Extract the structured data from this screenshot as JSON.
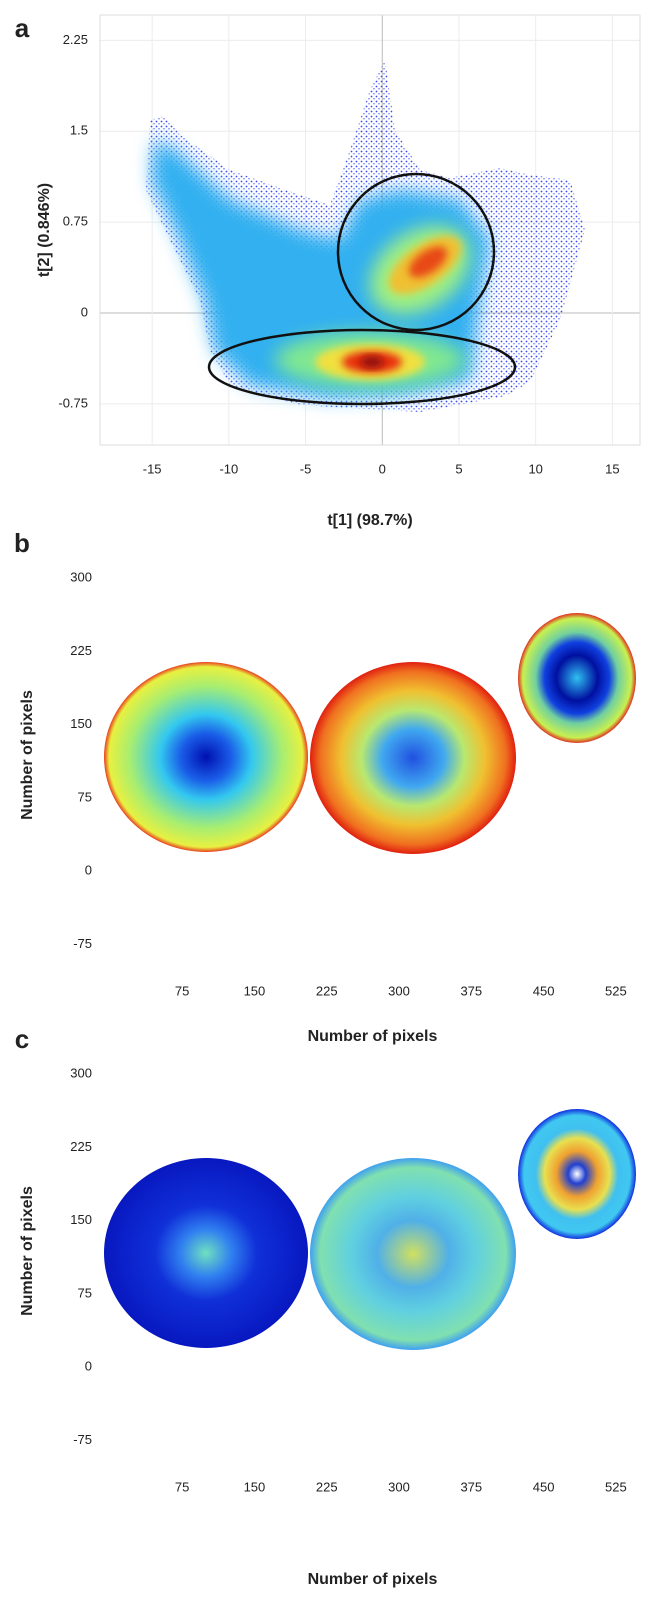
{
  "chart_data": [
    {
      "type": "scatter",
      "panel": "a",
      "xlabel": "t[1] (98.7%)",
      "ylabel": "t[2] (0.846%)",
      "xlim": [
        -18.4,
        16.8
      ],
      "ylim": [
        -1.09,
        2.46
      ],
      "xticks": [
        -15,
        -10,
        -5,
        0,
        5,
        10,
        15
      ],
      "yticks": [
        2.25,
        1.5,
        0.75,
        0,
        -0.75
      ],
      "grid": true
    },
    {
      "type": "image",
      "panel": "b",
      "xlabel": "Number of pixels",
      "ylabel": "Number of pixels",
      "xlim": [
        -5,
        550
      ],
      "ylim": [
        -91,
        329
      ],
      "xticks": [
        75,
        150,
        225,
        300,
        375,
        450,
        525
      ],
      "yticks": [
        -75,
        0,
        75,
        150,
        225,
        300
      ],
      "grid": false
    },
    {
      "type": "image",
      "panel": "c",
      "xlabel": "Number of pixels",
      "ylabel": "Number of pixels",
      "xlim": [
        -5,
        550
      ],
      "ylim": [
        -91,
        329
      ],
      "xticks": [
        75,
        150,
        225,
        300,
        375,
        450,
        525
      ],
      "yticks": [
        -75,
        0,
        75,
        150,
        225,
        300
      ],
      "grid": false
    }
  ]
}
